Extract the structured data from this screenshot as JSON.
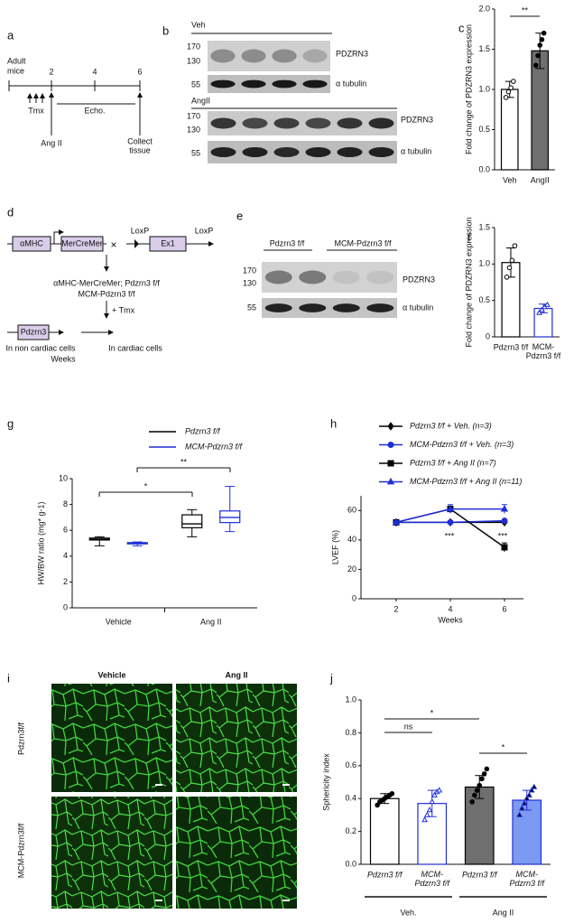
{
  "figure": {
    "a": {
      "label": "a",
      "subject": [
        "Adult",
        "mice"
      ],
      "weeks": [
        "2",
        "4",
        "6"
      ],
      "tmx": "Tmx",
      "echo": "Echo.",
      "angii": "Ang II",
      "collect": [
        "Collect",
        "tissue"
      ]
    },
    "b": {
      "label": "b",
      "groups": [
        "Veh",
        "AngII"
      ],
      "markers": [
        "170",
        "130",
        "55"
      ],
      "bands": [
        "PDZRN3",
        "α tubulin"
      ]
    },
    "d": {
      "label": "d",
      "promoter": "αMHC",
      "gene": "MerCreMer",
      "cross": "×",
      "loxp": "LoxP",
      "exon": "Ex1",
      "genotype": [
        "αMHC-MerCreMer; Pdzrn3 f/f",
        "MCM-Pdzrn3 f/f"
      ],
      "treatment": "+ Tmx",
      "product": "Pdzrn3",
      "cells": [
        "In non cardiac cells",
        "In cardiac cells"
      ],
      "time": "Weeks"
    },
    "e": {
      "label": "e",
      "groups": [
        "Pdzrn3 f/f",
        "MCM-Pdzrn3 f/f"
      ],
      "markers": [
        "170",
        "130",
        "55"
      ],
      "bands": [
        "PDZRN3",
        "α tubulin"
      ]
    },
    "i": {
      "label": "i",
      "columns": [
        "Vehicle",
        "Ang II"
      ],
      "rows": [
        "Pdzrn3f/f",
        "MCM-Pdzrn3f/f"
      ]
    }
  },
  "chart_data": [
    {
      "type": "bar",
      "panel": "c",
      "ylabel": "Fold change of PDZRN3 expression",
      "categories": [
        "Veh",
        "AngII"
      ],
      "values": [
        1.0,
        1.48
      ],
      "errors": [
        0.1,
        0.22
      ],
      "points": [
        [
          0.9,
          0.97,
          1.02,
          1.1
        ],
        [
          1.3,
          1.42,
          1.55,
          1.62,
          1.7
        ]
      ],
      "fill": [
        "#ffffff",
        "#6f6f6f"
      ],
      "edgecolor": [
        "#000000",
        "#000000"
      ],
      "point_fill": [
        "#ffffff",
        "#000000"
      ],
      "point_marker": [
        "circle",
        "circle"
      ],
      "ylim": [
        0,
        2
      ],
      "yticks": [
        {
          "value": 0,
          "label": "0.0"
        },
        {
          "value": 0.5,
          "label": "0.5"
        },
        {
          "value": 1,
          "label": "1.0"
        },
        {
          "value": 1.5,
          "label": "1.5"
        },
        {
          "value": 2,
          "label": "2.0"
        }
      ],
      "annotations": [
        "**"
      ]
    },
    {
      "type": "bar",
      "panel": "f",
      "ylabel": "Fold change of PDZRN3 expression",
      "categories": [
        "Pdzrn3 f/f",
        "MCM-Pdzrn3 f/f"
      ],
      "values": [
        1.02,
        0.39
      ],
      "errors": [
        0.2,
        0.06
      ],
      "points": [
        [
          0.82,
          0.95,
          1.05,
          1.25
        ],
        [
          0.33,
          0.37,
          0.41,
          0.44
        ]
      ],
      "fill": [
        "#ffffff",
        "#ffffff"
      ],
      "edgecolor": [
        "#000000",
        "#1f2fd6"
      ],
      "point_fill": [
        "#ffffff",
        "#ffffff"
      ],
      "point_marker": [
        "circle",
        "triangle"
      ],
      "ylim": [
        0,
        1.5
      ],
      "yticks": [
        0,
        0.5,
        {
          "value": 1,
          "label": "1.0"
        },
        1.5
      ],
      "annotations": []
    },
    {
      "type": "box",
      "panel": "g",
      "ylabel": "HW/BW ratio (mg* g-1)",
      "categories": [
        "Vehicle",
        "Ang II"
      ],
      "series": [
        {
          "name": "Pdzrn3 f/f",
          "color": "#000000",
          "boxes": [
            {
              "min": 4.8,
              "q1": 5.25,
              "median": 5.3,
              "q3": 5.4,
              "max": 5.5
            },
            {
              "min": 5.5,
              "q1": 6.2,
              "median": 6.5,
              "q3": 7.2,
              "max": 7.6
            }
          ]
        },
        {
          "name": "MCM-Pdzrn3 f/f",
          "color": "#1f2fd6",
          "boxes": [
            {
              "min": 4.8,
              "q1": 4.95,
              "median": 5.0,
              "q3": 5.05,
              "max": 5.1
            },
            {
              "min": 5.9,
              "q1": 6.6,
              "median": 7.0,
              "q3": 7.5,
              "max": 9.4
            }
          ]
        }
      ],
      "ylim": [
        0,
        10
      ],
      "yticks": [
        0,
        2,
        4,
        6,
        8,
        10
      ],
      "annotations": [
        "*",
        "**"
      ]
    },
    {
      "type": "line",
      "panel": "h",
      "xlabel": "Weeks",
      "ylabel": "LVEF (%)",
      "x": [
        2,
        4,
        6
      ],
      "xlim": [
        0.7,
        6.7
      ],
      "xticks": [
        2,
        4,
        6
      ],
      "ylim": [
        0,
        70
      ],
      "yticks": [
        0,
        20,
        40,
        60
      ],
      "series": [
        {
          "name": "Pdzrn3 f/f + Veh. (n=3)",
          "color": "#000000",
          "marker": "diamond",
          "values": [
            52,
            52,
            52
          ],
          "errors": [
            1,
            1,
            1
          ]
        },
        {
          "name": "MCM-Pdzrn3 f/f + Veh. (n=3)",
          "color": "#1f2fd6",
          "marker": "circle",
          "values": [
            52,
            52,
            53
          ],
          "errors": [
            1,
            1,
            1
          ]
        },
        {
          "name": "Pdzrn3 f/f + Ang II (n=7)",
          "color": "#000000",
          "marker": "square",
          "values": [
            52,
            61,
            35
          ],
          "errors": [
            1,
            2,
            3
          ]
        },
        {
          "name": "MCM-Pdzrn3 f/f + Ang II (n=11)",
          "color": "#1f2fd6",
          "marker": "triangle",
          "values": [
            52,
            61,
            61
          ],
          "errors": [
            1,
            3,
            3
          ]
        }
      ],
      "annotations": [
        "***",
        "***"
      ]
    },
    {
      "type": "bar",
      "panel": "j",
      "ylabel": "Sphericity index",
      "categories": [
        "Pdzrn3 f/f",
        "MCM-Pdzrn3 f/f",
        "Pdzrn3 f/f",
        "MCM-Pdzrn3 f/f"
      ],
      "groups": [
        "Veh.",
        "Ang II"
      ],
      "values": [
        0.4,
        0.37,
        0.47,
        0.39
      ],
      "errors": [
        0.03,
        0.08,
        0.07,
        0.06
      ],
      "points": [
        [
          0.36,
          0.38,
          0.39,
          0.4,
          0.41,
          0.42,
          0.43
        ],
        [
          0.27,
          0.3,
          0.33,
          0.38,
          0.42,
          0.44,
          0.45
        ],
        [
          0.38,
          0.42,
          0.45,
          0.48,
          0.52,
          0.55,
          0.58
        ],
        [
          0.3,
          0.34,
          0.37,
          0.4,
          0.42,
          0.45,
          0.47
        ]
      ],
      "fill": [
        "#ffffff",
        "#ffffff",
        "#6f6f6f",
        "#7d9af2"
      ],
      "edgecolor": [
        "#000000",
        "#1f2fd6",
        "#000000",
        "#1f2fd6"
      ],
      "point_fill": [
        "#000000",
        "#ffffff",
        "#000000",
        "#000000"
      ],
      "point_marker": [
        "circle",
        "triangle",
        "circle",
        "triangle"
      ],
      "ylim": [
        0,
        1
      ],
      "yticks": [
        {
          "value": 0,
          "label": "0.0"
        },
        {
          "value": 0.2,
          "label": "0.2"
        },
        {
          "value": 0.4,
          "label": "0.4"
        },
        {
          "value": 0.6,
          "label": "0.6"
        },
        {
          "value": 0.8,
          "label": "0.8"
        },
        {
          "value": 1,
          "label": "1.0"
        }
      ],
      "annotations": [
        "ns",
        "*",
        "*"
      ]
    }
  ]
}
